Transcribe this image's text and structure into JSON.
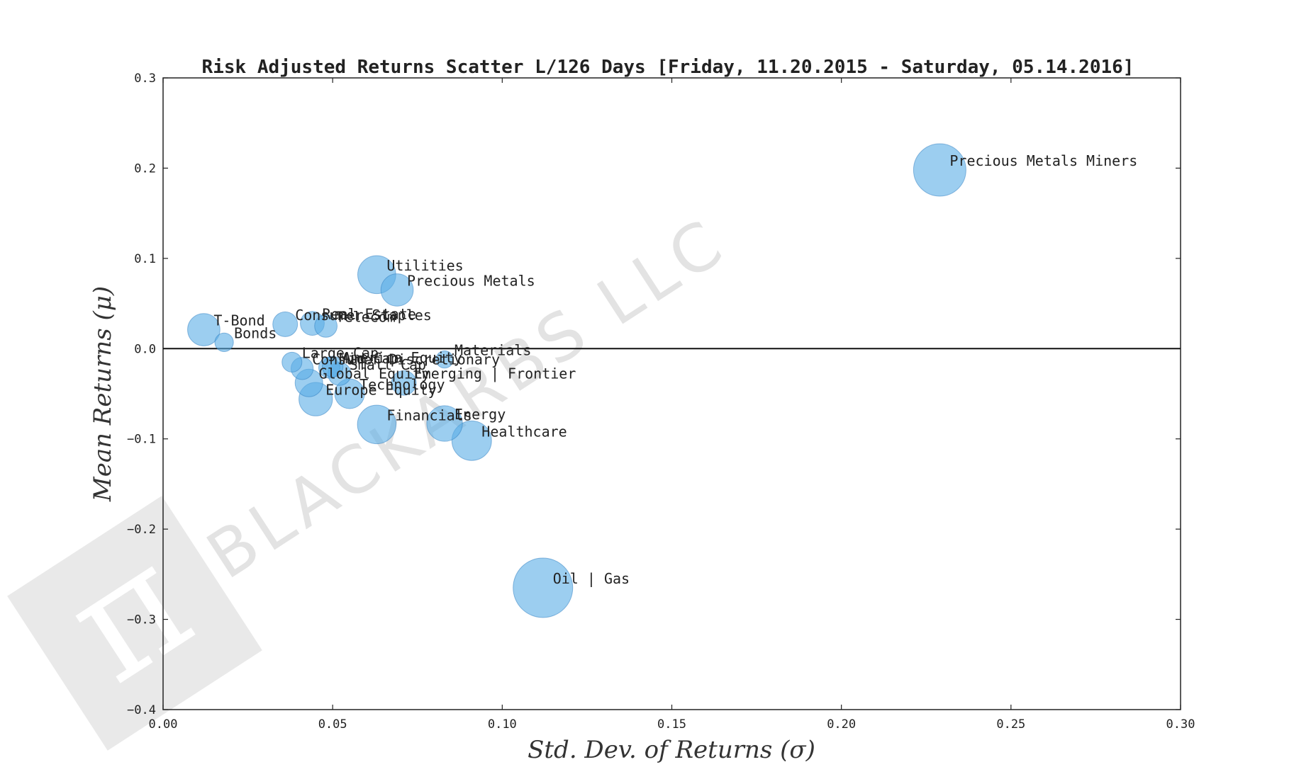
{
  "chart_data": {
    "type": "scatter",
    "title": "Risk Adjusted Returns Scatter L/126 Days [Friday, 11.20.2015 - Saturday, 05.14.2016]",
    "xlabel": "Std.  Dev.  of  Returns    (σ)",
    "ylabel": "Mean  Returns    (μ)",
    "xlim": [
      0.0,
      0.3
    ],
    "ylim": [
      -0.4,
      0.3
    ],
    "x_ticks": [
      "0.00",
      "0.05",
      "0.10",
      "0.15",
      "0.20",
      "0.25",
      "0.30"
    ],
    "y_ticks": [
      "0.3",
      "0.2",
      "0.1",
      "0.0",
      "−0.1",
      "−0.2",
      "−0.3",
      "−0.4"
    ],
    "grid": false,
    "zero_line": true,
    "marker_color": "#5aaee6",
    "watermark": "BLACKARBS LLC",
    "points": [
      {
        "label": "Precious Metals Miners",
        "x": 0.229,
        "y": 0.198
      },
      {
        "label": "Utilities",
        "x": 0.063,
        "y": 0.082
      },
      {
        "label": "Precious Metals",
        "x": 0.069,
        "y": 0.065
      },
      {
        "label": "T-Bond",
        "x": 0.012,
        "y": 0.021
      },
      {
        "label": "Bonds",
        "x": 0.018,
        "y": 0.007
      },
      {
        "label": "Consumer Staples",
        "x": 0.036,
        "y": 0.027
      },
      {
        "label": "Real Estate",
        "x": 0.044,
        "y": 0.028
      },
      {
        "label": "Telecom",
        "x": 0.048,
        "y": 0.025
      },
      {
        "label": "Materials",
        "x": 0.083,
        "y": -0.012
      },
      {
        "label": "Large Cap",
        "x": 0.038,
        "y": -0.015
      },
      {
        "label": "Consumer Discretionary",
        "x": 0.041,
        "y": -0.022
      },
      {
        "label": "Mid Cap",
        "x": 0.049,
        "y": -0.021
      },
      {
        "label": "America Equity",
        "x": 0.05,
        "y": -0.02
      },
      {
        "label": "Small Cap",
        "x": 0.052,
        "y": -0.028
      },
      {
        "label": "Global Equity",
        "x": 0.043,
        "y": -0.038
      },
      {
        "label": "Emerging | Frontier",
        "x": 0.071,
        "y": -0.038
      },
      {
        "label": "Technology",
        "x": 0.055,
        "y": -0.05
      },
      {
        "label": "Europe Equity",
        "x": 0.045,
        "y": -0.056
      },
      {
        "label": "Financials",
        "x": 0.063,
        "y": -0.084
      },
      {
        "label": "Energy",
        "x": 0.083,
        "y": -0.083
      },
      {
        "label": "Healthcare",
        "x": 0.091,
        "y": -0.102
      },
      {
        "label": "Oil | Gas",
        "x": 0.112,
        "y": -0.265
      }
    ]
  }
}
